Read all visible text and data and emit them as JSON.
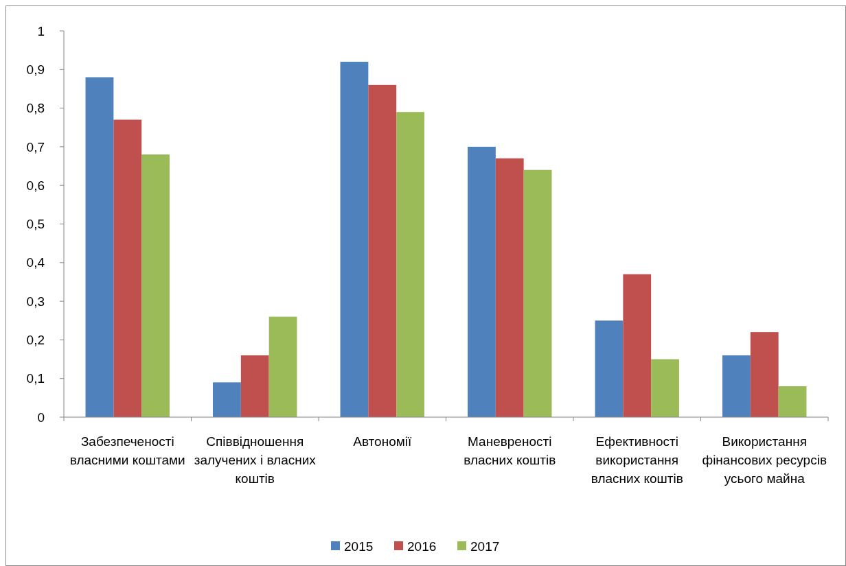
{
  "chart_data": {
    "type": "bar",
    "categories": [
      "Забезпеченості власними коштами",
      "Співвідношення залучених і власних коштів",
      "Автономії",
      "Маневреності власних коштів",
      "Ефективності використання власних коштів",
      "Використання фінансових ресурсів усього майна"
    ],
    "series": [
      {
        "name": "2015",
        "color": "#4f81bd",
        "values": [
          0.88,
          0.09,
          0.92,
          0.7,
          0.25,
          0.16
        ]
      },
      {
        "name": "2016",
        "color": "#c0504d",
        "values": [
          0.77,
          0.16,
          0.86,
          0.67,
          0.37,
          0.22
        ]
      },
      {
        "name": "2017",
        "color": "#9bbb59",
        "values": [
          0.68,
          0.26,
          0.79,
          0.64,
          0.15,
          0.08
        ]
      }
    ],
    "ylim": [
      0,
      1
    ],
    "yticks": [
      0,
      {
        "value": 0.1,
        "label": "0,1"
      },
      {
        "value": 0.2,
        "label": "0,2"
      },
      {
        "value": 0.3,
        "label": "0,3"
      },
      {
        "value": 0.4,
        "label": "0,4"
      },
      {
        "value": 0.5,
        "label": "0,5"
      },
      {
        "value": 0.6,
        "label": "0,6"
      },
      {
        "value": 0.7,
        "label": "0,7"
      },
      {
        "value": 0.8,
        "label": "0,8"
      },
      {
        "value": 0.9,
        "label": "0,9"
      },
      1
    ],
    "grid": false,
    "legend": "bottom"
  }
}
